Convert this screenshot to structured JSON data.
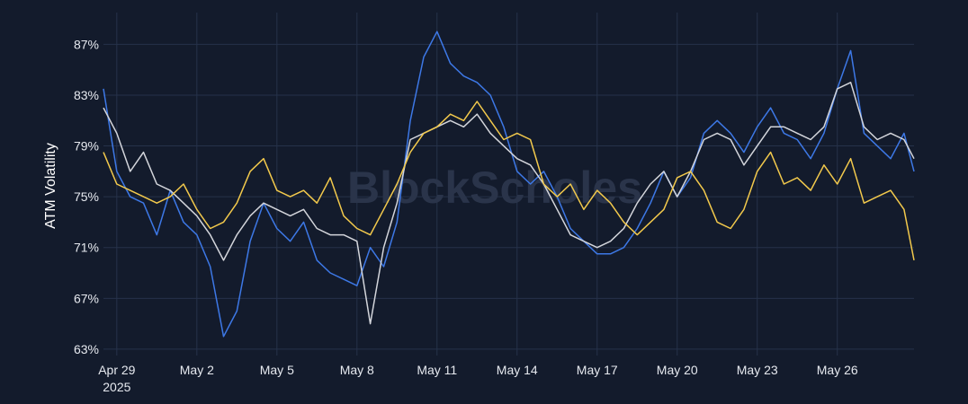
{
  "watermark": "BlockScholes",
  "colors": {
    "background": "#131b2c",
    "grid": "#26324a",
    "text": "#e6e9ef"
  },
  "chart_data": {
    "type": "line",
    "ylabel": "ATM Volatility",
    "xlabel": "",
    "x_axis_type": "date",
    "xlim": [
      "2025-04-28T12:00",
      "2025-05-28T21:00"
    ],
    "ylim": [
      62.5,
      89.5
    ],
    "x_ticks": [
      {
        "at": "2025-04-29",
        "label": "Apr 29",
        "sublabel": "2025"
      },
      {
        "at": "2025-05-02",
        "label": "May 2"
      },
      {
        "at": "2025-05-05",
        "label": "May 5"
      },
      {
        "at": "2025-05-08",
        "label": "May 8"
      },
      {
        "at": "2025-05-11",
        "label": "May 11"
      },
      {
        "at": "2025-05-14",
        "label": "May 14"
      },
      {
        "at": "2025-05-17",
        "label": "May 17"
      },
      {
        "at": "2025-05-20",
        "label": "May 20"
      },
      {
        "at": "2025-05-23",
        "label": "May 23"
      },
      {
        "at": "2025-05-26",
        "label": "May 26"
      }
    ],
    "y_ticks": [
      63,
      67,
      71,
      75,
      79,
      83,
      87
    ],
    "y_tick_suffix": "%",
    "grid": true,
    "legend": "none",
    "series": [
      {
        "color": "#3d78e6",
        "x": [
          "2025-04-28T12:00",
          "2025-04-29T00:00",
          "2025-04-29T12:00",
          "2025-04-30T00:00",
          "2025-04-30T12:00",
          "2025-05-01T00:00",
          "2025-05-01T12:00",
          "2025-05-02T00:00",
          "2025-05-02T12:00",
          "2025-05-03T00:00",
          "2025-05-03T12:00",
          "2025-05-04T00:00",
          "2025-05-04T12:00",
          "2025-05-05T00:00",
          "2025-05-05T12:00",
          "2025-05-06T00:00",
          "2025-05-06T12:00",
          "2025-05-07T00:00",
          "2025-05-07T12:00",
          "2025-05-08T00:00",
          "2025-05-08T12:00",
          "2025-05-09T00:00",
          "2025-05-09T12:00",
          "2025-05-10T00:00",
          "2025-05-10T12:00",
          "2025-05-11T00:00",
          "2025-05-11T12:00",
          "2025-05-12T00:00",
          "2025-05-12T12:00",
          "2025-05-13T00:00",
          "2025-05-13T12:00",
          "2025-05-14T00:00",
          "2025-05-14T12:00",
          "2025-05-15T00:00",
          "2025-05-15T12:00",
          "2025-05-16T00:00",
          "2025-05-16T12:00",
          "2025-05-17T00:00",
          "2025-05-17T12:00",
          "2025-05-18T00:00",
          "2025-05-18T12:00",
          "2025-05-19T00:00",
          "2025-05-19T12:00",
          "2025-05-20T00:00",
          "2025-05-20T12:00",
          "2025-05-21T00:00",
          "2025-05-21T12:00",
          "2025-05-22T00:00",
          "2025-05-22T12:00",
          "2025-05-23T00:00",
          "2025-05-23T12:00",
          "2025-05-24T00:00",
          "2025-05-24T12:00",
          "2025-05-25T00:00",
          "2025-05-25T12:00",
          "2025-05-26T00:00",
          "2025-05-26T12:00",
          "2025-05-27T00:00",
          "2025-05-27T12:00",
          "2025-05-28T00:00",
          "2025-05-28T12:00",
          "2025-05-28T21:00"
        ],
        "y": [
          83.5,
          77,
          75,
          74.5,
          72,
          75.5,
          73,
          72,
          69.5,
          64,
          66,
          71.5,
          74.5,
          72.5,
          71.5,
          73,
          70,
          69,
          68.5,
          68,
          71,
          69.5,
          73,
          81,
          86,
          88,
          85.5,
          84.5,
          84,
          83,
          80.5,
          77,
          76,
          77,
          75,
          72.5,
          71.5,
          70.5,
          70.5,
          71,
          72.5,
          74.5,
          77,
          75,
          76.5,
          80,
          81,
          80,
          78.5,
          80.5,
          82,
          80,
          79.5,
          78,
          80,
          83.5,
          86.5,
          80,
          79,
          78,
          80,
          77
        ]
      },
      {
        "color": "#d3d5db",
        "x": [
          "2025-04-28T12:00",
          "2025-04-29T00:00",
          "2025-04-29T12:00",
          "2025-04-30T00:00",
          "2025-04-30T12:00",
          "2025-05-01T00:00",
          "2025-05-01T12:00",
          "2025-05-02T00:00",
          "2025-05-02T12:00",
          "2025-05-03T00:00",
          "2025-05-03T12:00",
          "2025-05-04T00:00",
          "2025-05-04T12:00",
          "2025-05-05T00:00",
          "2025-05-05T12:00",
          "2025-05-06T00:00",
          "2025-05-06T12:00",
          "2025-05-07T00:00",
          "2025-05-07T12:00",
          "2025-05-08T00:00",
          "2025-05-08T12:00",
          "2025-05-09T00:00",
          "2025-05-09T12:00",
          "2025-05-10T00:00",
          "2025-05-10T12:00",
          "2025-05-11T00:00",
          "2025-05-11T12:00",
          "2025-05-12T00:00",
          "2025-05-12T12:00",
          "2025-05-13T00:00",
          "2025-05-13T12:00",
          "2025-05-14T00:00",
          "2025-05-14T12:00",
          "2025-05-15T00:00",
          "2025-05-15T12:00",
          "2025-05-16T00:00",
          "2025-05-16T12:00",
          "2025-05-17T00:00",
          "2025-05-17T12:00",
          "2025-05-18T00:00",
          "2025-05-18T12:00",
          "2025-05-19T00:00",
          "2025-05-19T12:00",
          "2025-05-20T00:00",
          "2025-05-20T12:00",
          "2025-05-21T00:00",
          "2025-05-21T12:00",
          "2025-05-22T00:00",
          "2025-05-22T12:00",
          "2025-05-23T00:00",
          "2025-05-23T12:00",
          "2025-05-24T00:00",
          "2025-05-24T12:00",
          "2025-05-25T00:00",
          "2025-05-25T12:00",
          "2025-05-26T00:00",
          "2025-05-26T12:00",
          "2025-05-27T00:00",
          "2025-05-27T12:00",
          "2025-05-28T00:00",
          "2025-05-28T12:00",
          "2025-05-28T21:00"
        ],
        "y": [
          82,
          80,
          77,
          78.5,
          76,
          75.5,
          74.5,
          73.5,
          72,
          70,
          72,
          73.5,
          74.5,
          74,
          73.5,
          74,
          72.5,
          72,
          72,
          71.5,
          65,
          71,
          74.5,
          79.5,
          80,
          80.5,
          81,
          80.5,
          81.5,
          80,
          79,
          78,
          77.5,
          76,
          74,
          72,
          71.5,
          71,
          71.5,
          72.5,
          74.5,
          76,
          77,
          75,
          77,
          79.5,
          80,
          79.5,
          77.5,
          79,
          80.5,
          80.5,
          80,
          79.5,
          80.5,
          83.5,
          84,
          80.5,
          79.5,
          80,
          79.5,
          78
        ]
      },
      {
        "color": "#f2c94c",
        "x": [
          "2025-04-28T12:00",
          "2025-04-29T00:00",
          "2025-04-29T12:00",
          "2025-04-30T00:00",
          "2025-04-30T12:00",
          "2025-05-01T00:00",
          "2025-05-01T12:00",
          "2025-05-02T00:00",
          "2025-05-02T12:00",
          "2025-05-03T00:00",
          "2025-05-03T12:00",
          "2025-05-04T00:00",
          "2025-05-04T12:00",
          "2025-05-05T00:00",
          "2025-05-05T12:00",
          "2025-05-06T00:00",
          "2025-05-06T12:00",
          "2025-05-07T00:00",
          "2025-05-07T12:00",
          "2025-05-08T00:00",
          "2025-05-08T12:00",
          "2025-05-09T00:00",
          "2025-05-09T12:00",
          "2025-05-10T00:00",
          "2025-05-10T12:00",
          "2025-05-11T00:00",
          "2025-05-11T12:00",
          "2025-05-12T00:00",
          "2025-05-12T12:00",
          "2025-05-13T00:00",
          "2025-05-13T12:00",
          "2025-05-14T00:00",
          "2025-05-14T12:00",
          "2025-05-15T00:00",
          "2025-05-15T12:00",
          "2025-05-16T00:00",
          "2025-05-16T12:00",
          "2025-05-17T00:00",
          "2025-05-17T12:00",
          "2025-05-18T00:00",
          "2025-05-18T12:00",
          "2025-05-19T00:00",
          "2025-05-19T12:00",
          "2025-05-20T00:00",
          "2025-05-20T12:00",
          "2025-05-21T00:00",
          "2025-05-21T12:00",
          "2025-05-22T00:00",
          "2025-05-22T12:00",
          "2025-05-23T00:00",
          "2025-05-23T12:00",
          "2025-05-24T00:00",
          "2025-05-24T12:00",
          "2025-05-25T00:00",
          "2025-05-25T12:00",
          "2025-05-26T00:00",
          "2025-05-26T12:00",
          "2025-05-27T00:00",
          "2025-05-27T12:00",
          "2025-05-28T00:00",
          "2025-05-28T12:00",
          "2025-05-28T21:00"
        ],
        "y": [
          78.5,
          76,
          75.5,
          75,
          74.5,
          75,
          76,
          74,
          72.5,
          73,
          74.5,
          77,
          78,
          75.5,
          75,
          75.5,
          74.5,
          76.5,
          73.5,
          72.5,
          72,
          74,
          76,
          78.5,
          80,
          80.5,
          81.5,
          81,
          82.5,
          81,
          79.5,
          80,
          79.5,
          76,
          75,
          76,
          74,
          75.5,
          74.5,
          73,
          72,
          73,
          74,
          76.5,
          77,
          75.5,
          73,
          72.5,
          74,
          77,
          78.5,
          76,
          76.5,
          75.5,
          77.5,
          76,
          78,
          74.5,
          75,
          75.5,
          74,
          70
        ]
      }
    ]
  }
}
